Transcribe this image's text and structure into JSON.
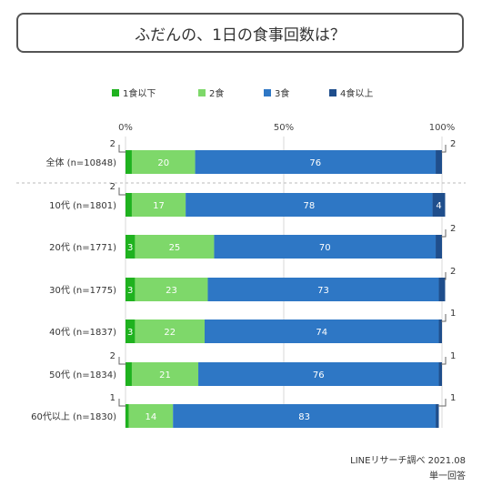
{
  "title": "ふだんの、1日の食事回数は？",
  "legend": [
    {
      "label": "1食以下",
      "color": "#1fb21f"
    },
    {
      "label": "2食",
      "color": "#7ed86a"
    },
    {
      "label": "3食",
      "color": "#2e77c5"
    },
    {
      "label": "4食以上",
      "color": "#1f4e8c"
    }
  ],
  "footer": {
    "source": "LINEリサーチ調べ 2021.08",
    "note": "単一回答"
  },
  "chart_data": {
    "type": "bar",
    "orientation": "horizontal",
    "stacked": "percent",
    "xlim": [
      0,
      100
    ],
    "xticks": [
      "0%",
      "50%",
      "100%"
    ],
    "categories": [
      "全体 (n=10848)",
      "10代 (n=1801)",
      "20代 (n=1771)",
      "30代 (n=1775)",
      "40代 (n=1837)",
      "50代 (n=1834)",
      "60代以上 (n=1830)"
    ],
    "series": [
      {
        "name": "1食以下",
        "values": [
          2,
          2,
          3,
          3,
          3,
          2,
          1
        ]
      },
      {
        "name": "2食",
        "values": [
          20,
          17,
          25,
          23,
          22,
          21,
          14
        ]
      },
      {
        "name": "3食",
        "values": [
          76,
          78,
          70,
          73,
          74,
          76,
          83
        ]
      },
      {
        "name": "4食以上",
        "values": [
          2,
          4,
          2,
          2,
          1,
          1,
          1
        ]
      }
    ]
  }
}
